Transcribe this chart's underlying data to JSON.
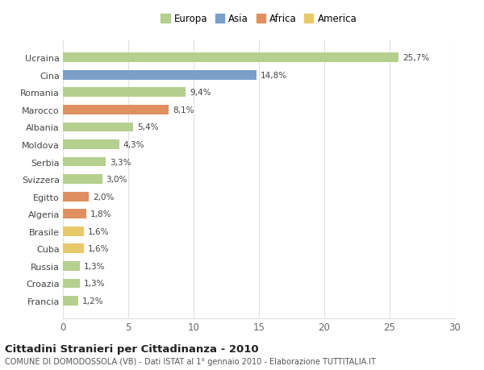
{
  "categories": [
    "Francia",
    "Croazia",
    "Russia",
    "Cuba",
    "Brasile",
    "Algeria",
    "Egitto",
    "Svizzera",
    "Serbia",
    "Moldova",
    "Albania",
    "Marocco",
    "Romania",
    "Cina",
    "Ucraina"
  ],
  "values": [
    1.2,
    1.3,
    1.3,
    1.6,
    1.6,
    1.8,
    2.0,
    3.0,
    3.3,
    4.3,
    5.4,
    8.1,
    9.4,
    14.8,
    25.7
  ],
  "colors": [
    "#b5cf8f",
    "#b5cf8f",
    "#b5cf8f",
    "#e8c96a",
    "#e8c96a",
    "#e09060",
    "#e09060",
    "#b5cf8f",
    "#b5cf8f",
    "#b5cf8f",
    "#b5cf8f",
    "#e09060",
    "#b5cf8f",
    "#7a9fc9",
    "#b5cf8f"
  ],
  "legend_items": [
    {
      "label": "Europa",
      "color": "#b5cf8f"
    },
    {
      "label": "Asia",
      "color": "#7a9fc9"
    },
    {
      "label": "Africa",
      "color": "#e09060"
    },
    {
      "label": "America",
      "color": "#e8c96a"
    }
  ],
  "title": "Cittadini Stranieri per Cittadinanza - 2010",
  "subtitle": "COMUNE DI DOMODOSSOLA (VB) - Dati ISTAT al 1° gennaio 2010 - Elaborazione TUTTITALIA.IT",
  "xlim": [
    0,
    30
  ],
  "xticks": [
    0,
    5,
    10,
    15,
    20,
    25,
    30
  ],
  "bg_color": "#ffffff",
  "grid_color": "#e0e0e0",
  "bar_height": 0.55
}
